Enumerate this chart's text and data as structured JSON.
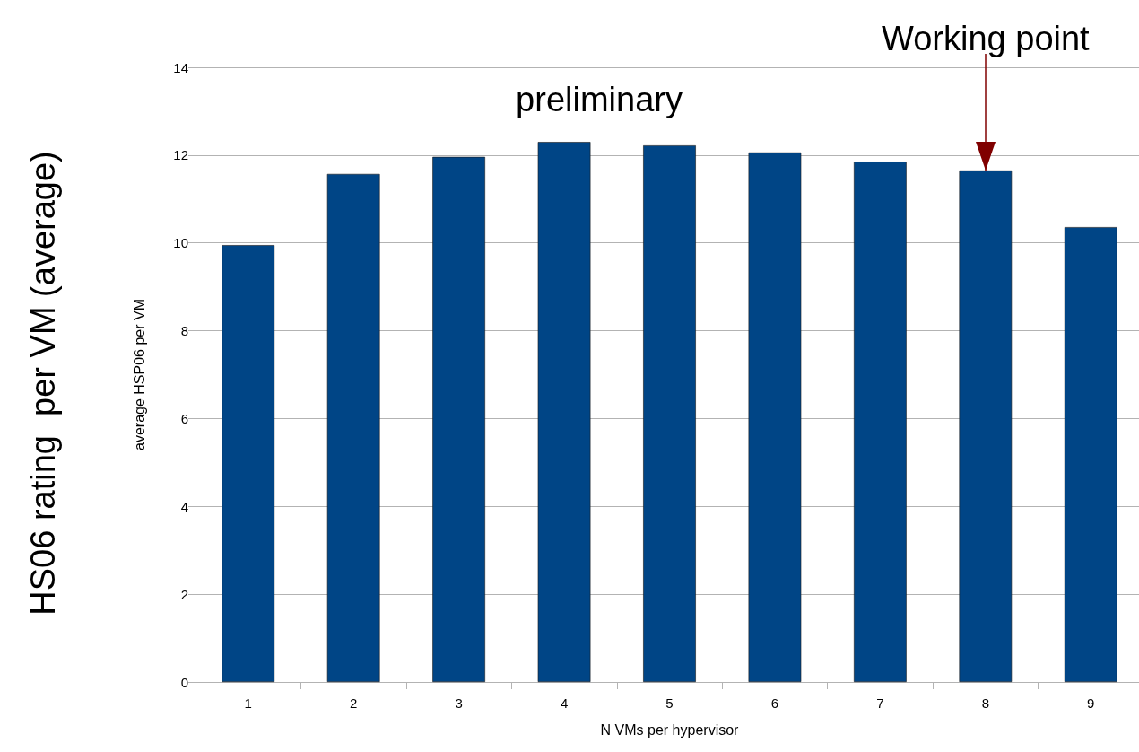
{
  "chart_data": {
    "type": "bar",
    "xlabel": "N VMs per hypervisor",
    "ylabel": "average HSP06 per VM",
    "categories": [
      "1",
      "2",
      "3",
      "4",
      "5",
      "6",
      "7",
      "8",
      "9"
    ],
    "values": [
      9.95,
      11.57,
      11.96,
      12.3,
      12.22,
      12.06,
      11.85,
      11.65,
      10.36
    ],
    "color": "#004586",
    "ylim": [
      0,
      14
    ],
    "yticks": [
      0,
      2,
      4,
      6,
      8,
      10,
      12,
      14
    ],
    "grid": "y",
    "annotations": [
      "HS06 rating  per VM (average)",
      "preliminary",
      {
        "text": "Working point",
        "x": "8",
        "y": 11.65
      }
    ]
  }
}
